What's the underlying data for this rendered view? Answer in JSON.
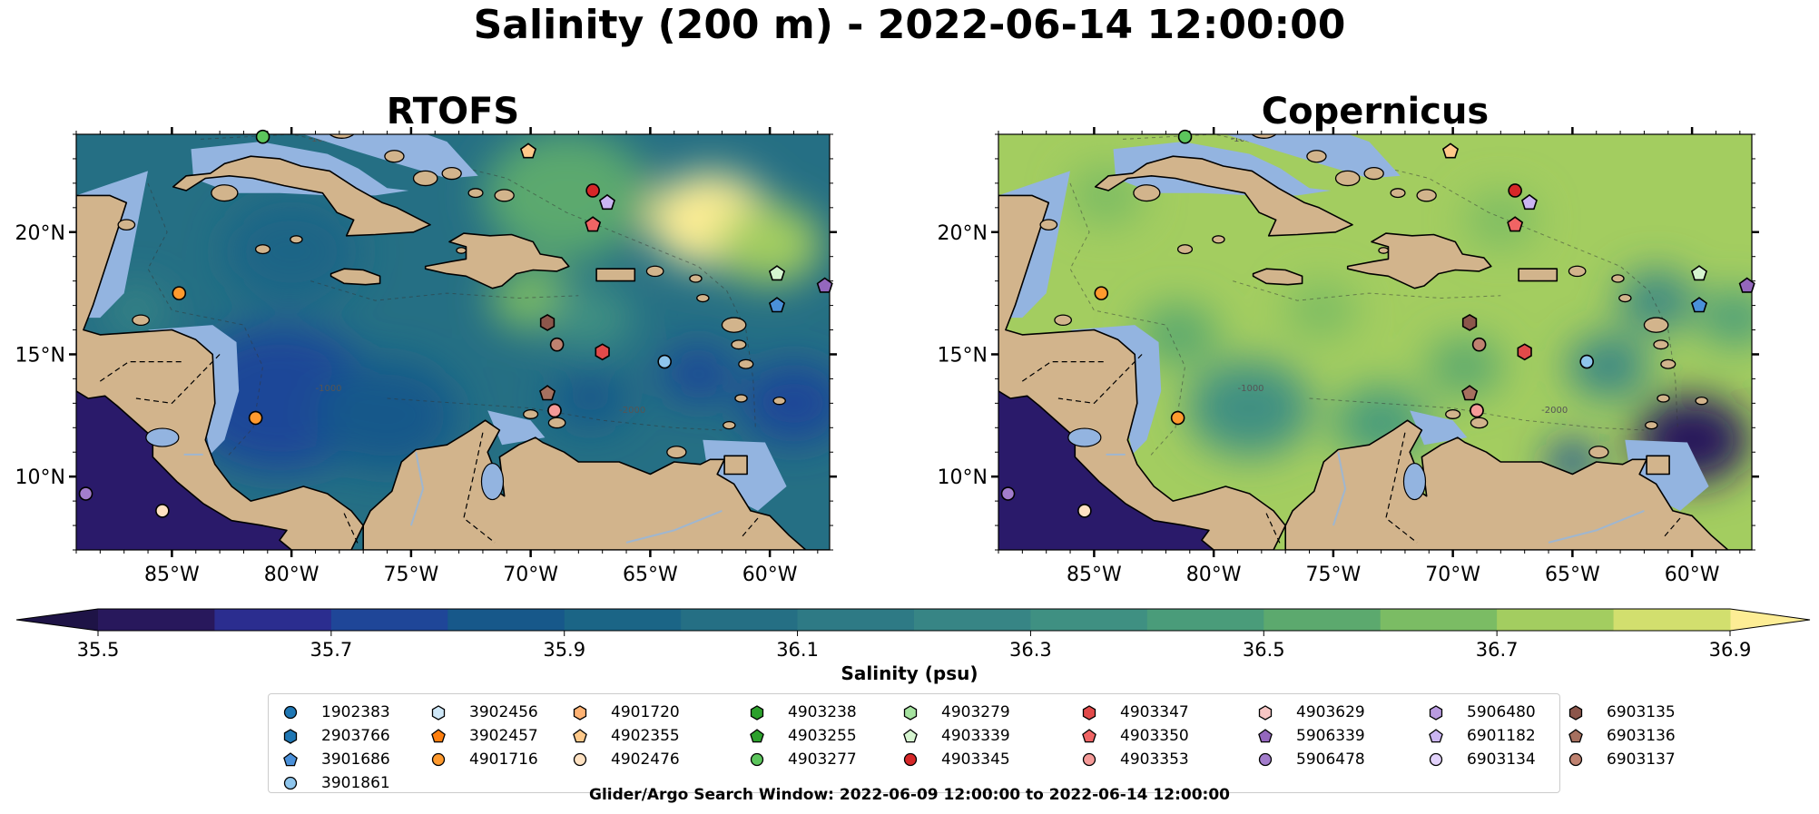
{
  "figure": {
    "title": "Salinity (200 m) - 2022-06-14 12:00:00",
    "footer": "Glider/Argo Search Window: 2022-06-09 12:00:00 to 2022-06-14 12:00:00"
  },
  "colors": {
    "land": "#d2b48c",
    "shelf": "#93b4e0",
    "pacific": "#2a1a6a",
    "rivers": "#9fb6cf"
  },
  "chart_data": {
    "type": "heatmap",
    "variable": "Salinity",
    "depth": "200 m",
    "extent": {
      "lon": [
        -89,
        -57.5
      ],
      "lat": [
        7,
        24
      ]
    },
    "x_ticks": [
      -85,
      -80,
      -75,
      -70,
      -65,
      -60
    ],
    "x_tick_labels": [
      "85°W",
      "80°W",
      "75°W",
      "70°W",
      "65°W",
      "60°W"
    ],
    "y_ticks": [
      10,
      15,
      20
    ],
    "y_tick_labels": [
      "10°N",
      "15°N",
      "20°N"
    ],
    "colorbar": {
      "label": "Salinity (psu)",
      "ticks": [
        35.5,
        35.7,
        35.9,
        36.1,
        36.3,
        36.5,
        36.7,
        36.9
      ],
      "tick_labels": [
        "35.5",
        "35.7",
        "35.9",
        "36.1",
        "36.3",
        "36.5",
        "36.7",
        "36.9"
      ],
      "levels": [
        35.5,
        35.6,
        35.7,
        35.8,
        35.9,
        36.0,
        36.1,
        36.2,
        36.3,
        36.4,
        36.5,
        36.6,
        36.7,
        36.8,
        36.9
      ],
      "colors": [
        "#28185c",
        "#2b2d8f",
        "#1f4698",
        "#17588a",
        "#1b6586",
        "#256f84",
        "#2e7a85",
        "#378585",
        "#3f9082",
        "#4a9c7a",
        "#5ca96e",
        "#7bbc64",
        "#a3cd60",
        "#d2df6e"
      ],
      "extend_low": "#1e1346",
      "extend_high": "#fded95"
    },
    "panels": [
      {
        "title": "RTOFS",
        "mean_salinity": 36.0,
        "features": [
          {
            "lon": -68.5,
            "lat": 21.5,
            "r": 3.5,
            "salinity": 36.55
          },
          {
            "lon": -62.5,
            "lat": 20.5,
            "r": 2.6,
            "salinity": 36.9
          },
          {
            "lon": -60,
            "lat": 19.5,
            "r": 2.2,
            "salinity": 36.7
          },
          {
            "lon": -70,
            "lat": 17.3,
            "r": 1.7,
            "salinity": 36.6
          },
          {
            "lon": -67.5,
            "lat": 16.5,
            "r": 1.8,
            "salinity": 36.3
          },
          {
            "lon": -80.5,
            "lat": 13.2,
            "r": 4,
            "salinity": 35.75
          },
          {
            "lon": -76,
            "lat": 12.5,
            "r": 3,
            "salinity": 35.8
          },
          {
            "lon": -63,
            "lat": 14.2,
            "r": 1.5,
            "salinity": 35.7
          },
          {
            "lon": -59,
            "lat": 13,
            "r": 2.2,
            "salinity": 35.7
          },
          {
            "lon": -80,
            "lat": 19.2,
            "r": 2.8,
            "salinity": 35.95
          },
          {
            "lon": -86.5,
            "lat": 16.8,
            "r": 1.3,
            "salinity": 36.25
          },
          {
            "lon": -67.5,
            "lat": 13.2,
            "r": 1.6,
            "salinity": 35.85
          }
        ],
        "platforms": [
          "4903277",
          "4902355",
          "4903345",
          "4903350",
          "6901182",
          "4903339",
          "3901686",
          "5906339",
          "4901716",
          "6903135",
          "6903137",
          "4903347",
          "3901861",
          "6903136",
          "6903134",
          "4903353",
          "5906478",
          "4902476"
        ]
      },
      {
        "title": "Copernicus",
        "mean_salinity": 36.75,
        "features": [
          {
            "lon": -60,
            "lat": 11.5,
            "r": 2.4,
            "salinity": 35.55
          },
          {
            "lon": -65,
            "lat": 10.6,
            "r": 1.1,
            "salinity": 35.7
          },
          {
            "lon": -63.5,
            "lat": 14.5,
            "r": 1.7,
            "salinity": 36.2
          },
          {
            "lon": -61.5,
            "lat": 17.2,
            "r": 1.6,
            "salinity": 36.2
          },
          {
            "lon": -78.5,
            "lat": 12.8,
            "r": 2.6,
            "salinity": 36.3
          },
          {
            "lon": -73,
            "lat": 12.2,
            "r": 2,
            "salinity": 36.4
          },
          {
            "lon": -81.5,
            "lat": 15.8,
            "r": 1.7,
            "salinity": 36.5
          },
          {
            "lon": -69.5,
            "lat": 14.5,
            "r": 1.6,
            "salinity": 36.55
          },
          {
            "lon": -75.5,
            "lat": 16.8,
            "r": 1.5,
            "salinity": 36.6
          },
          {
            "lon": -84.5,
            "lat": 21.5,
            "r": 1.6,
            "salinity": 36.6
          },
          {
            "lon": -68,
            "lat": 20.5,
            "r": 1.5,
            "salinity": 36.65
          },
          {
            "lon": -58.2,
            "lat": 16.5,
            "r": 1.5,
            "salinity": 36.45
          }
        ],
        "platforms": [
          "4903277",
          "4902355",
          "4903345",
          "4903350",
          "6901182",
          "4903339",
          "3901686",
          "5906339",
          "4901716",
          "6903135",
          "6903137",
          "4903347",
          "3901861",
          "6903136",
          "6903134",
          "4903353",
          "5906478",
          "4902476"
        ]
      }
    ],
    "contour_labels": [
      "-100",
      "-1000",
      "-2000"
    ],
    "platforms": [
      {
        "id": "1902383",
        "marker": "circle",
        "color": "#1f77b4"
      },
      {
        "id": "2903766",
        "marker": "hexagon",
        "color": "#1f77b4"
      },
      {
        "id": "3901686",
        "marker": "pentagon",
        "color": "#4a90d9"
      },
      {
        "id": "3901861",
        "marker": "circle",
        "color": "#8ec5ec"
      },
      {
        "id": "3902456",
        "marker": "hexagon",
        "color": "#cfe8f8"
      },
      {
        "id": "3902457",
        "marker": "pentagon",
        "color": "#ff7f0e"
      },
      {
        "id": "4901716",
        "marker": "circle",
        "color": "#ff9a2e"
      },
      {
        "id": "4901720",
        "marker": "hexagon",
        "color": "#ffb374"
      },
      {
        "id": "4902355",
        "marker": "pentagon",
        "color": "#ffc98a"
      },
      {
        "id": "4902476",
        "marker": "circle",
        "color": "#ffe2c2"
      },
      {
        "id": "4903238",
        "marker": "hexagon",
        "color": "#2ca02c"
      },
      {
        "id": "4903255",
        "marker": "pentagon",
        "color": "#2ca02c"
      },
      {
        "id": "4903277",
        "marker": "circle",
        "color": "#5cc55c"
      },
      {
        "id": "4903279",
        "marker": "hexagon",
        "color": "#a6e3a0"
      },
      {
        "id": "4903339",
        "marker": "pentagon",
        "color": "#d6f5d0"
      },
      {
        "id": "4903345",
        "marker": "circle",
        "color": "#d62728"
      },
      {
        "id": "4903347",
        "marker": "hexagon",
        "color": "#e24a4a"
      },
      {
        "id": "4903350",
        "marker": "pentagon",
        "color": "#f06464"
      },
      {
        "id": "4903353",
        "marker": "circle",
        "color": "#f59a98"
      },
      {
        "id": "4903629",
        "marker": "hexagon",
        "color": "#f7c6c4"
      },
      {
        "id": "5906339",
        "marker": "pentagon",
        "color": "#9467bd"
      },
      {
        "id": "5906478",
        "marker": "circle",
        "color": "#a37dcc"
      },
      {
        "id": "5906480",
        "marker": "hexagon",
        "color": "#b99be0"
      },
      {
        "id": "6901182",
        "marker": "pentagon",
        "color": "#cbb5f2"
      },
      {
        "id": "6903134",
        "marker": "circle",
        "color": "#e2d2fb"
      },
      {
        "id": "6903135",
        "marker": "hexagon",
        "color": "#8c564b"
      },
      {
        "id": "6903136",
        "marker": "pentagon",
        "color": "#a6705f"
      },
      {
        "id": "6903137",
        "marker": "circle",
        "color": "#bf8270"
      }
    ],
    "observations": [
      {
        "platform": "4903277",
        "lon": -81.2,
        "lat": 23.9
      },
      {
        "platform": "4902355",
        "lon": -70.1,
        "lat": 23.3
      },
      {
        "platform": "4903345",
        "lon": -67.4,
        "lat": 21.7
      },
      {
        "platform": "4903350",
        "lon": -67.4,
        "lat": 20.3
      },
      {
        "platform": "6901182",
        "lon": -66.8,
        "lat": 21.2
      },
      {
        "platform": "4903339",
        "lon": -59.7,
        "lat": 18.3
      },
      {
        "platform": "3901686",
        "lon": -59.7,
        "lat": 17.0
      },
      {
        "platform": "5906339",
        "lon": -57.7,
        "lat": 17.8
      },
      {
        "platform": "4901716",
        "lon": -84.7,
        "lat": 17.5
      },
      {
        "platform": "6903135",
        "lon": -69.3,
        "lat": 16.3
      },
      {
        "platform": "6903137",
        "lon": -68.9,
        "lat": 15.4
      },
      {
        "platform": "4903347",
        "lon": -67.0,
        "lat": 15.1
      },
      {
        "platform": "3901861",
        "lon": -64.4,
        "lat": 14.7
      },
      {
        "platform": "6903136",
        "lon": -69.3,
        "lat": 13.4
      },
      {
        "platform": "6903134",
        "lon": -69.0,
        "lat": 12.7
      },
      {
        "platform": "4903353",
        "lon": -69.0,
        "lat": 12.7
      },
      {
        "platform": "4901716",
        "lon": -81.5,
        "lat": 12.4
      },
      {
        "platform": "5906478",
        "lon": -88.6,
        "lat": 9.3
      },
      {
        "platform": "4902476",
        "lon": -85.4,
        "lat": 8.6
      }
    ]
  }
}
